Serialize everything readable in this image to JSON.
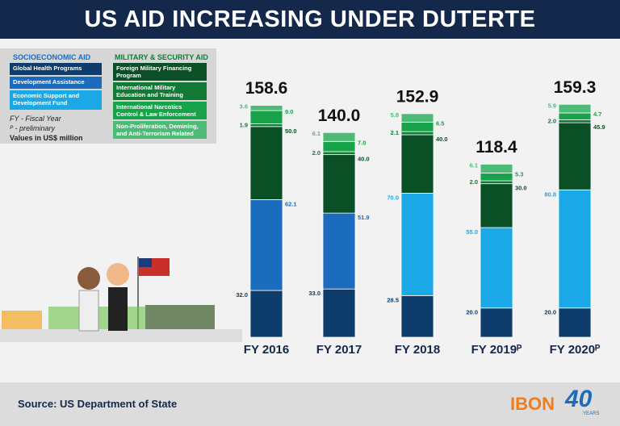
{
  "chart_data": {
    "type": "stacked_bar",
    "title": "US AID INCREASING UNDER DUTERTE",
    "legend_groups": [
      "SOCIOECONOMIC AID",
      "MILITARY & SECURITY AID"
    ],
    "notes": [
      "FY - Fiscal Year",
      "ᴾ - preliminary",
      "Values in US$ million"
    ],
    "source": "Source: US Department of State",
    "logo": "IBON",
    "logo_badge": "40",
    "logo_badge_sub": "YEARS",
    "categories": [
      "FY 2016",
      "FY 2017",
      "FY 2018",
      "FY 2019ᴾ",
      "FY 2020ᴾ"
    ],
    "ylim": [
      0,
      160
    ],
    "totals": {
      "values": [
        158.6,
        140.0,
        152.9,
        118.4,
        159.3
      ],
      "value_labels": [
        "158.6",
        "140.0",
        "152.9",
        "118.4",
        "159.3"
      ]
    },
    "series": [
      {
        "name": "Global Health Programs",
        "color": "#0e3d6b",
        "values": [
          32.0,
          33.0,
          28.5,
          20.0,
          20.0
        ],
        "value_labels": [
          "32.0",
          "33.0",
          "28.5",
          "20.0",
          "20.0"
        ]
      },
      {
        "name": "Development Assistance",
        "color": "#1b6cbd",
        "values": [
          62.1,
          51.9,
          null,
          null,
          null
        ],
        "value_labels": [
          "62.1",
          "51.9",
          null,
          null,
          null
        ]
      },
      {
        "name": "Economic Support and Development Fund",
        "color": "#1aa9e6",
        "values": [
          null,
          null,
          70.0,
          55.0,
          80.8
        ],
        "value_labels": [
          null,
          null,
          "70.0",
          "55.0",
          "80.8"
        ]
      },
      {
        "name": "Foreign Military Financing Program",
        "color": "#0b4f26",
        "values": [
          50.0,
          40.0,
          40.0,
          30.0,
          45.9
        ],
        "value_labels": [
          "50.0",
          "40.0",
          "40.0",
          "30.0",
          "45.9"
        ]
      },
      {
        "name": "International Military Education and Training",
        "color": "#137a36",
        "values": [
          1.9,
          2.0,
          2.1,
          2.0,
          2.0
        ],
        "value_labels": [
          "1.9",
          "2.0",
          "2.1",
          "2.0",
          "2.0"
        ]
      },
      {
        "name": "International Narcotics Control & Law Enforcement",
        "color": "#18a24a",
        "values": [
          9.0,
          7.0,
          6.5,
          5.3,
          4.7
        ],
        "value_labels": [
          "9.0",
          "7.0",
          "6.5",
          "5.3",
          "4.7"
        ]
      },
      {
        "name": "Non-Proliferation, Demining, and Anti-Terrorism Related",
        "color": "#4dbb77",
        "values": [
          3.6,
          6.1,
          5.8,
          6.1,
          5.9
        ],
        "value_labels": [
          "3.6",
          "6.1",
          "5.8",
          "6.1",
          "5.9"
        ]
      }
    ]
  }
}
